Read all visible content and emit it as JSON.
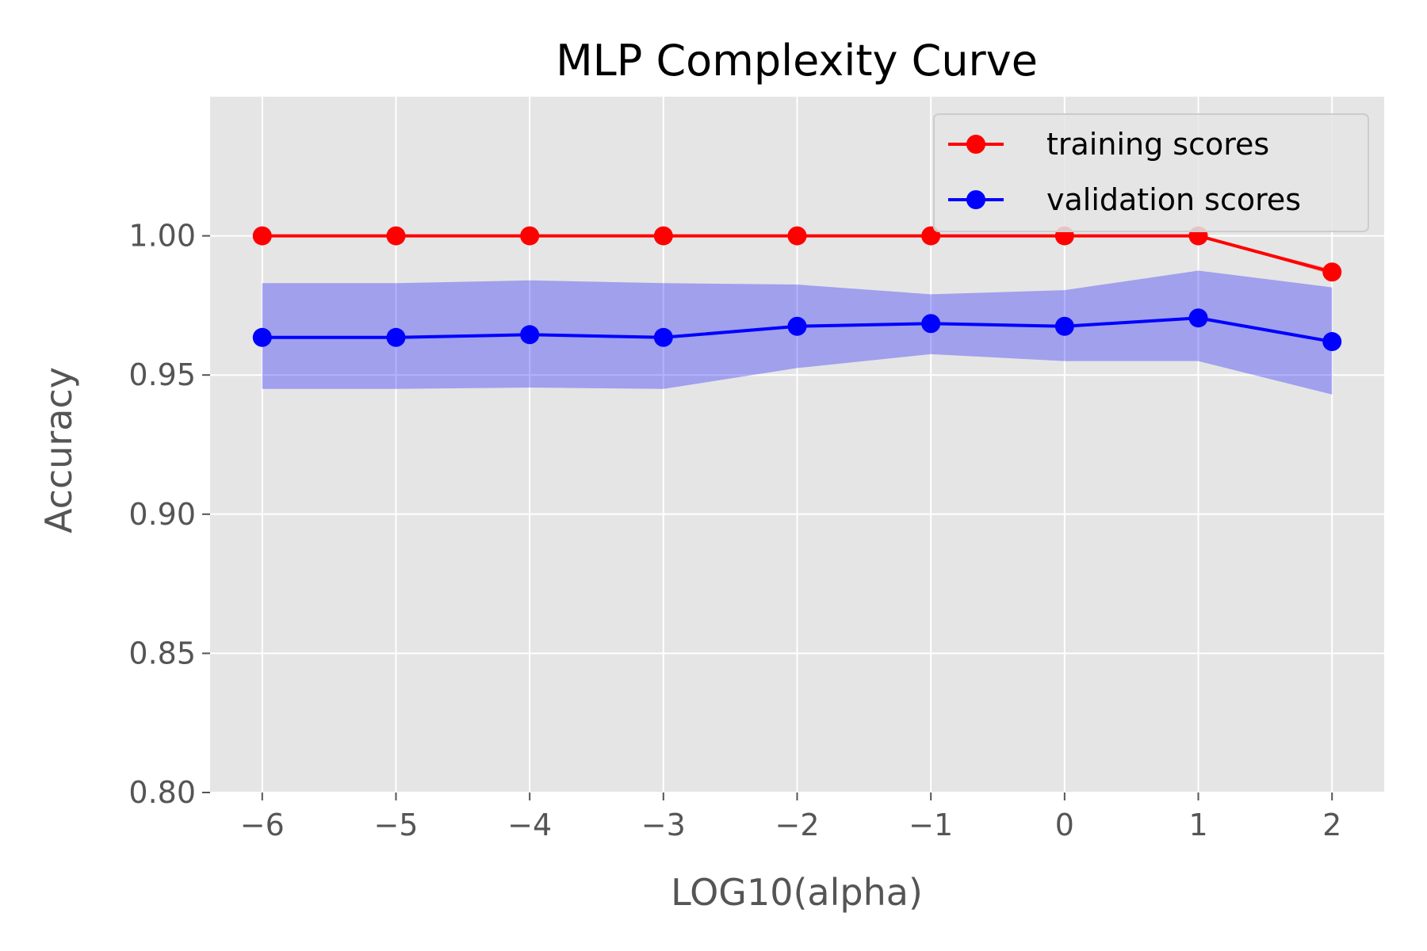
{
  "chart_data": {
    "type": "line",
    "title": "MLP Complexity Curve",
    "xlabel": "LOG10(alpha)",
    "ylabel": "Accuracy",
    "x": [
      -6,
      -5,
      -4,
      -3,
      -2,
      -1,
      0,
      1,
      2
    ],
    "xticks": [
      -6,
      -5,
      -4,
      -3,
      -2,
      -1,
      0,
      1,
      2
    ],
    "xtick_labels": [
      "−6",
      "−5",
      "−4",
      "−3",
      "−2",
      "−1",
      "0",
      "1",
      "2"
    ],
    "yticks": [
      0.8,
      0.85,
      0.9,
      0.95,
      1.0
    ],
    "ytick_labels": [
      "0.80",
      "0.85",
      "0.90",
      "0.95",
      "1.00"
    ],
    "xlim": [
      -6.39,
      2.39
    ],
    "ylim": [
      0.8,
      1.05
    ],
    "grid": true,
    "legend_position": "top-right",
    "series": [
      {
        "name": "training scores",
        "color": "#ff0000",
        "values": [
          1.0,
          1.0,
          1.0,
          1.0,
          1.0,
          1.0,
          1.0,
          1.0,
          0.987
        ],
        "band_lower": [
          1.0,
          1.0,
          1.0,
          1.0,
          1.0,
          1.0,
          1.0,
          1.0,
          0.986
        ],
        "band_upper": [
          1.0,
          1.0,
          1.0,
          1.0,
          1.0,
          1.0,
          1.0,
          1.0,
          0.988
        ],
        "band_color": "#ff0000"
      },
      {
        "name": "validation scores",
        "color": "#0000ff",
        "values": [
          0.9635,
          0.9635,
          0.9645,
          0.9635,
          0.9675,
          0.9685,
          0.9675,
          0.9705,
          0.962
        ],
        "band_lower": [
          0.945,
          0.945,
          0.9455,
          0.945,
          0.9525,
          0.9575,
          0.955,
          0.955,
          0.943
        ],
        "band_upper": [
          0.983,
          0.983,
          0.984,
          0.983,
          0.9825,
          0.979,
          0.9805,
          0.9875,
          0.9815
        ],
        "band_color": "#0000ff"
      }
    ]
  },
  "colors": {
    "plot_background": "#e5e5e5",
    "grid": "#ffffff",
    "tick_text": "#555555",
    "tick_mark": "#555555"
  }
}
